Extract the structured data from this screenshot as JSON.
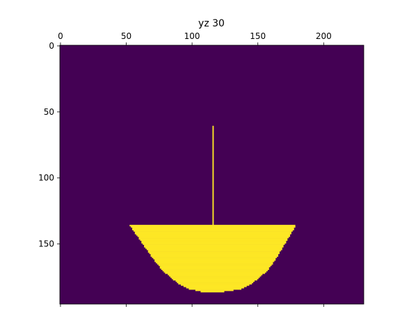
{
  "chart_data": {
    "type": "heatmap",
    "title": "yz 30",
    "xlabel": "",
    "ylabel": "",
    "x_ticks": [
      0,
      50,
      100,
      150,
      200
    ],
    "y_ticks": [
      0,
      50,
      100,
      150
    ],
    "xlim": [
      -0.5,
      230.5
    ],
    "ylim": [
      195.5,
      -0.5
    ],
    "x_axis_position": "top",
    "grid": false,
    "colormap": "viridis",
    "background_value": 0,
    "mask_value": 1,
    "colors": {
      "background": "#440154",
      "mask": "#fde725"
    },
    "mask_regions": {
      "stem": {
        "x": 116,
        "y_start": 61,
        "y_end": 136
      },
      "bowl_profile": [
        {
          "y": 136,
          "x_left": 53,
          "x_right": 178
        },
        {
          "y": 140,
          "x_left": 56,
          "x_right": 176
        },
        {
          "y": 150,
          "x_left": 63,
          "x_right": 170
        },
        {
          "y": 160,
          "x_left": 70,
          "x_right": 164
        },
        {
          "y": 170,
          "x_left": 78,
          "x_right": 157
        },
        {
          "y": 180,
          "x_left": 90,
          "x_right": 145
        },
        {
          "y": 184,
          "x_left": 98,
          "x_right": 137
        },
        {
          "y": 186,
          "x_left": 107,
          "x_right": 124
        }
      ]
    }
  }
}
